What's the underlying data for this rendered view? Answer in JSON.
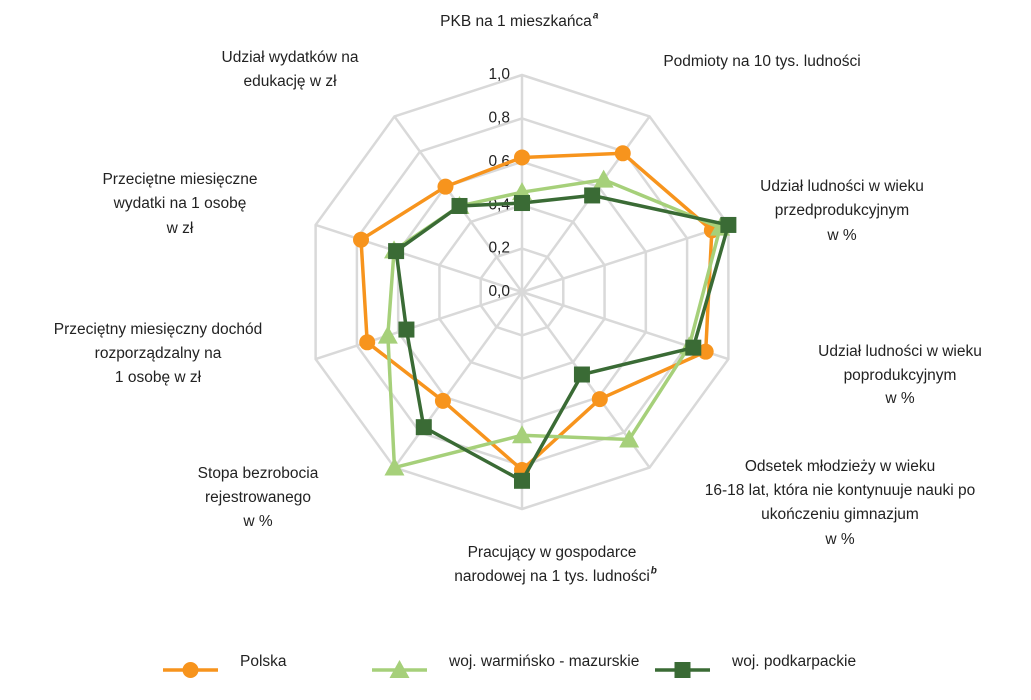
{
  "chart_data": {
    "type": "radar",
    "categories": [
      [
        "PKB na 1 mieszkańca"
      ],
      [
        "Podmioty na 10 tys. ludności"
      ],
      [
        "Udział ludności w wieku",
        "przedprodukcyjnym",
        "w %"
      ],
      [
        "Udział ludności w wieku",
        "poprodukcyjnym",
        "w %"
      ],
      [
        "Odsetek młodzieży w wieku",
        "16-18 lat, która nie kontynuuje nauki po",
        "ukończeniu gimnazjum",
        "w %"
      ],
      [
        "Pracujący w gospodarce",
        "narodowej na 1 tys. ludności"
      ],
      [
        "Stopa bezrobocia",
        "rejestrowanego",
        "w %"
      ],
      [
        "Przeciętny miesięczny dochód",
        "rozporządzalny na",
        "1 osobę w zł"
      ],
      [
        "Przeciętne miesięczne",
        "wydatki na 1 osobę",
        "w zł"
      ],
      [
        "Udział wydatków na",
        "edukację w zł"
      ]
    ],
    "category_notes": [
      "a",
      null,
      null,
      null,
      null,
      "b",
      null,
      null,
      null,
      null
    ],
    "series": [
      {
        "name": "Polska",
        "color": "#f7941d",
        "marker": "circle",
        "values": [
          0.62,
          0.79,
          0.92,
          0.89,
          0.61,
          0.82,
          0.62,
          0.75,
          0.78,
          0.6
        ]
      },
      {
        "name": "woj. warmińsko - mazurskie",
        "color": "#a6d07a",
        "marker": "triangle",
        "values": [
          0.46,
          0.64,
          0.96,
          0.81,
          0.84,
          0.66,
          1.0,
          0.65,
          0.62,
          0.49
        ]
      },
      {
        "name": "woj. podkarpackie",
        "color": "#3a6b35",
        "marker": "square",
        "values": [
          0.41,
          0.55,
          1.0,
          0.83,
          0.47,
          0.87,
          0.77,
          0.56,
          0.61,
          0.49
        ]
      }
    ],
    "rlim": [
      0,
      1
    ],
    "rticks": [
      {
        "value": 0,
        "label": "0,0"
      },
      {
        "value": 0.2,
        "label": "0,2"
      },
      {
        "value": 0.4,
        "label": "0,4"
      },
      {
        "value": 0.6,
        "label": "0,6"
      },
      {
        "value": 0.8,
        "label": "0,8"
      },
      {
        "value": 1,
        "label": "1,0"
      }
    ],
    "grid": true,
    "legend": "bottom"
  }
}
